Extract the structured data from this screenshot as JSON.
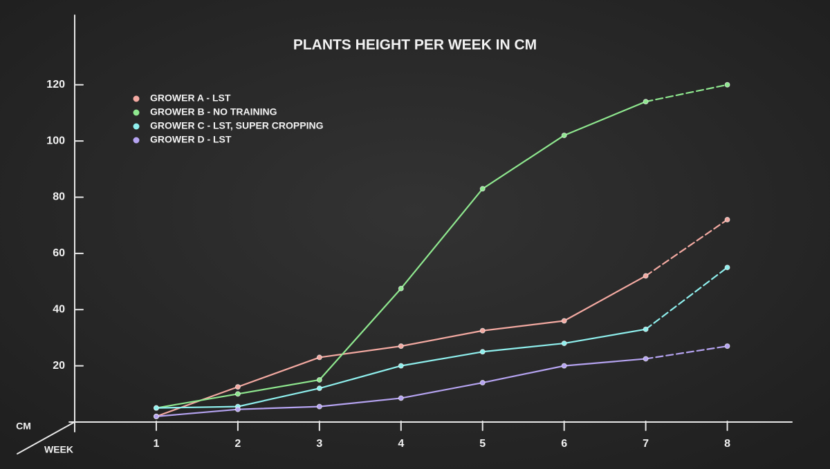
{
  "chart_data": {
    "type": "line",
    "title": "PLANTS HEIGHT PER WEEK IN CM",
    "ylabel": "CM",
    "xlabel": "WEEK",
    "x": [
      1,
      2,
      3,
      4,
      5,
      6,
      7,
      8
    ],
    "xlim": [
      0,
      8.75
    ],
    "xticks": [
      1,
      2,
      3,
      4,
      5,
      6,
      7,
      8
    ],
    "ylim": [
      0,
      145
    ],
    "yticks": [
      20,
      40,
      60,
      80,
      100,
      120
    ],
    "dashed_last_segment": true,
    "series": [
      {
        "name": "GROWER A - LST",
        "color": "#f4aaa2",
        "values": [
          2,
          12.5,
          23,
          27,
          32.5,
          36,
          52,
          72
        ]
      },
      {
        "name": "GROWER B - NO TRAINING",
        "color": "#8fe88f",
        "values": [
          5,
          10,
          15,
          47.5,
          83,
          102,
          114,
          120
        ]
      },
      {
        "name": "GROWER C - LST, SUPER CROPPING",
        "color": "#8ff0ee",
        "values": [
          5,
          5.5,
          12,
          20,
          25,
          28,
          33,
          55
        ]
      },
      {
        "name": "GROWER D - LST",
        "color": "#b6a4f2",
        "values": [
          2,
          4.5,
          5.5,
          8.5,
          14,
          20,
          22.5,
          27
        ]
      }
    ]
  }
}
